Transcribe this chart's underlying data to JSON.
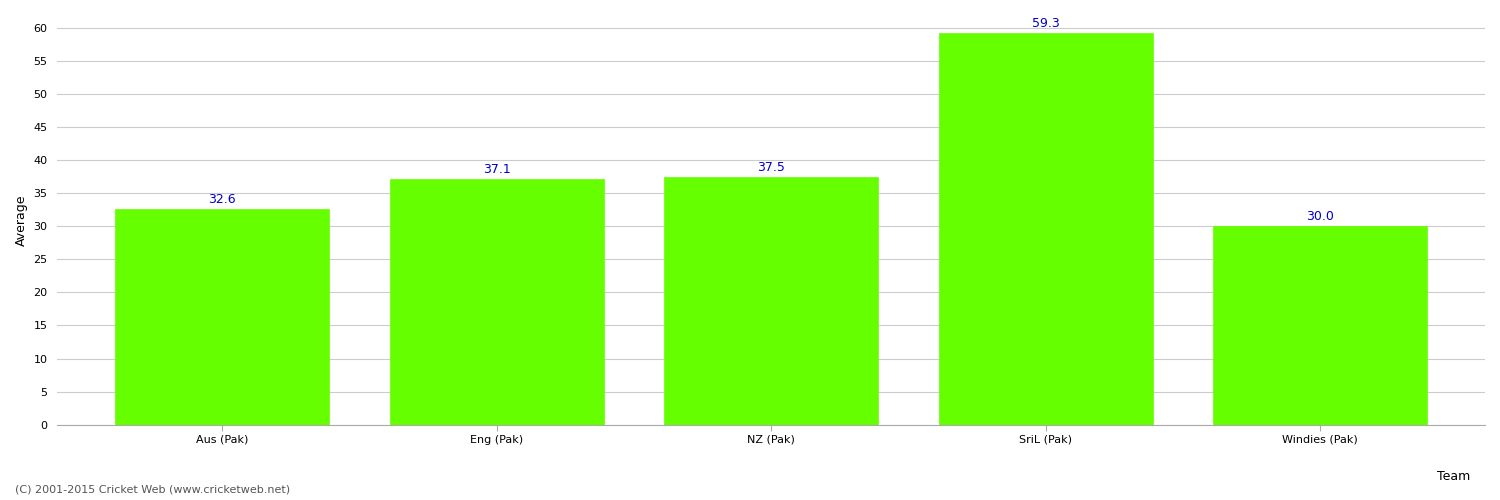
{
  "categories": [
    "Aus (Pak)",
    "Eng (Pak)",
    "NZ (Pak)",
    "SriL (Pak)",
    "Windies (Pak)"
  ],
  "values": [
    32.6,
    37.1,
    37.5,
    59.3,
    30.0
  ],
  "bar_color": "#66ff00",
  "bar_edge_color": "#66ff00",
  "xlabel": "Team",
  "ylabel": "Average",
  "ylim": [
    0,
    62
  ],
  "yticks": [
    0,
    5,
    10,
    15,
    20,
    25,
    30,
    35,
    40,
    45,
    50,
    55,
    60
  ],
  "label_color": "#0000cc",
  "label_fontsize": 9,
  "axis_fontsize": 9,
  "tick_fontsize": 8,
  "background_color": "#ffffff",
  "grid_color": "#cccccc",
  "footer_text": "(C) 2001-2015 Cricket Web (www.cricketweb.net)",
  "footer_fontsize": 8,
  "footer_color": "#555555"
}
